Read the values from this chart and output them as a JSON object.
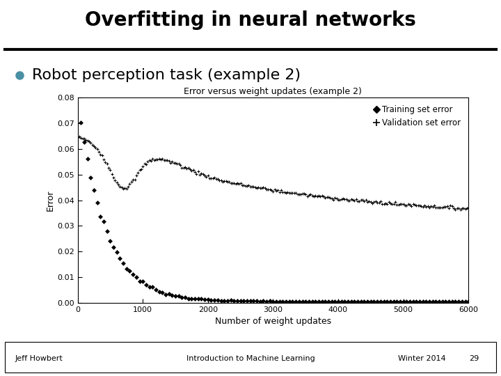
{
  "title": "Overfitting in neural networks",
  "bullet_text": "Robot perception task (example 2)",
  "bullet_color": "#4A90A4",
  "chart_title": "Error versus weight updates (example 2)",
  "xlabel": "Number of weight updates",
  "ylabel": "Error",
  "xlim": [
    0,
    6000
  ],
  "ylim": [
    0,
    0.08
  ],
  "yticks": [
    0,
    0.01,
    0.02,
    0.03,
    0.04,
    0.05,
    0.06,
    0.07,
    0.08
  ],
  "xticks": [
    0,
    1000,
    2000,
    3000,
    4000,
    5000,
    6000
  ],
  "footer_left": "Jeff Howbert",
  "footer_center": "Introduction to Machine Learning",
  "footer_right": "Winter 2014",
  "footer_page": "29",
  "bg_color": "#ffffff"
}
